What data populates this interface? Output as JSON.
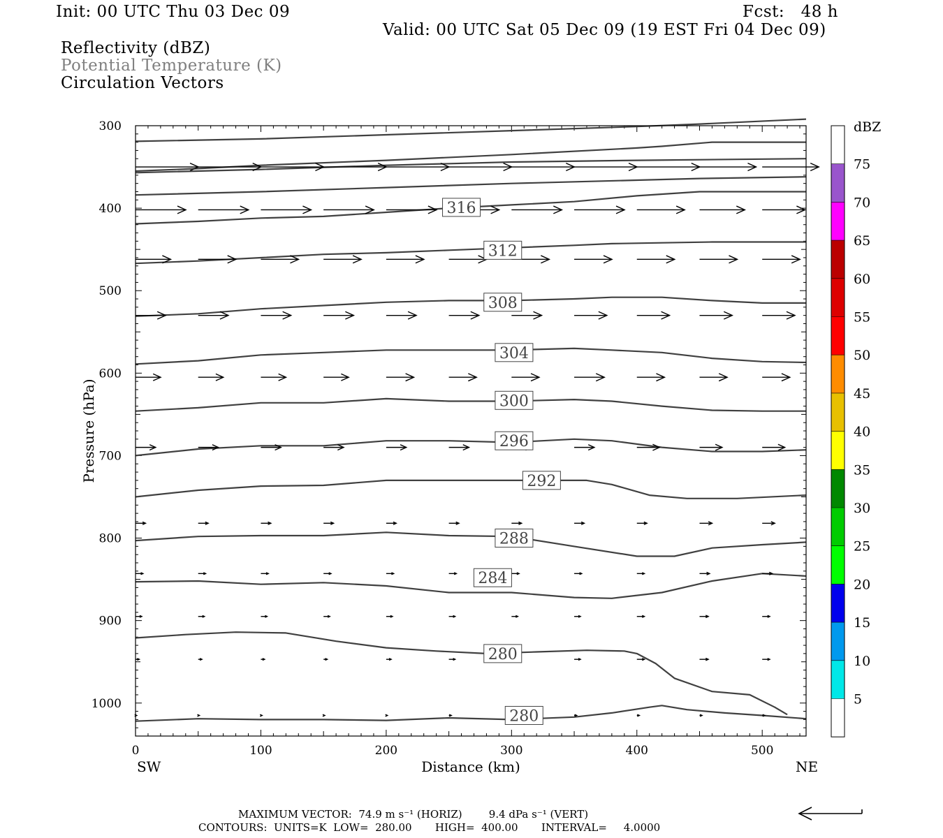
{
  "header": {
    "init": "Init: 00 UTC Thu 03 Dec 09",
    "fcst": "Fcst:   48 h",
    "valid": "Valid: 00 UTC Sat 05 Dec 09 (19 EST Fri 04 Dec 09)",
    "fields": [
      "Reflectivity (dBZ)",
      "Potential Temperature (K)",
      "Circulation Vectors"
    ]
  },
  "footer": {
    "max_vector": "MAXIMUM VECTOR:  74.9 m s⁻¹ (HORIZ)        9.4 dPa s⁻¹ (VERT)",
    "contours": "CONTOURS:  UNITS=K  LOW=  280.00       HIGH=  400.00       INTERVAL=     4.0000"
  },
  "colors": {
    "contour": "#404040",
    "vector": "#000000",
    "frame": "#000000"
  },
  "chart_data": {
    "type": "line",
    "xlabel": "Distance (km)",
    "ylabel": "Pressure (hPa)",
    "xlim": [
      0,
      535
    ],
    "ylim": [
      1040,
      300
    ],
    "x_ticks": [
      0,
      100,
      200,
      300,
      400,
      500
    ],
    "y_ticks": [
      300,
      400,
      500,
      600,
      700,
      800,
      900,
      1000
    ],
    "x_end_labels": {
      "left": "SW",
      "right": "NE"
    },
    "colorbar": {
      "title": "dBZ",
      "levels": [
        5,
        10,
        15,
        20,
        25,
        30,
        35,
        40,
        45,
        50,
        55,
        60,
        65,
        70,
        75
      ],
      "colors": [
        "#ffffff",
        "#00e8e8",
        "#0099ee",
        "#0000ee",
        "#00ff00",
        "#00cc00",
        "#008800",
        "#ffff00",
        "#e8c000",
        "#ff8c00",
        "#ff0000",
        "#dd0000",
        "#bb0000",
        "#ff00ff",
        "#9955cc",
        "#ffffff"
      ]
    },
    "series": [
      {
        "name": "280",
        "label_at": [
          310,
          1015
        ],
        "x": [
          0,
          50,
          100,
          150,
          200,
          250,
          300,
          350,
          380,
          410,
          420,
          440,
          470,
          500,
          535
        ],
        "y": [
          1022,
          1019,
          1020,
          1020,
          1021,
          1018,
          1020,
          1017,
          1012,
          1005,
          1003,
          1008,
          1012,
          1015,
          1019
        ]
      },
      {
        "name": "280",
        "label_at": [
          293,
          940
        ],
        "x": [
          0,
          40,
          80,
          120,
          160,
          200,
          240,
          280,
          320,
          360,
          390,
          400,
          415,
          430,
          460,
          490,
          510,
          520
        ],
        "y": [
          921,
          917,
          914,
          915,
          925,
          933,
          937,
          940,
          938,
          936,
          937,
          940,
          952,
          970,
          986,
          990,
          1005,
          1014
        ]
      },
      {
        "name": "284",
        "label_at": [
          285,
          848
        ],
        "x": [
          0,
          50,
          100,
          150,
          200,
          250,
          300,
          350,
          380,
          420,
          460,
          500,
          535
        ],
        "y": [
          853,
          852,
          856,
          854,
          858,
          866,
          866,
          872,
          873,
          866,
          852,
          843,
          846
        ]
      },
      {
        "name": "288",
        "label_at": [
          302,
          800
        ],
        "x": [
          0,
          50,
          100,
          150,
          200,
          250,
          300,
          350,
          400,
          430,
          460,
          500,
          535
        ],
        "y": [
          803,
          798,
          797,
          797,
          793,
          797,
          798,
          810,
          822,
          822,
          812,
          808,
          805
        ]
      },
      {
        "name": "292",
        "label_at": [
          324,
          730
        ],
        "x": [
          0,
          50,
          100,
          150,
          200,
          250,
          300,
          360,
          380,
          410,
          440,
          480,
          535
        ],
        "y": [
          750,
          742,
          737,
          736,
          730,
          730,
          730,
          730,
          735,
          748,
          752,
          752,
          748
        ]
      },
      {
        "name": "296",
        "label_at": [
          302,
          682
        ],
        "x": [
          0,
          50,
          100,
          150,
          200,
          250,
          300,
          350,
          380,
          420,
          460,
          500,
          535
        ],
        "y": [
          700,
          692,
          688,
          688,
          682,
          682,
          684,
          680,
          682,
          690,
          695,
          695,
          693
        ]
      },
      {
        "name": "300",
        "label_at": [
          302,
          633
        ],
        "x": [
          0,
          50,
          100,
          150,
          200,
          250,
          300,
          350,
          380,
          420,
          460,
          500,
          535
        ],
        "y": [
          646,
          642,
          636,
          636,
          631,
          634,
          634,
          632,
          634,
          640,
          645,
          646,
          646
        ]
      },
      {
        "name": "304",
        "label_at": [
          302,
          575
        ],
        "x": [
          0,
          50,
          100,
          150,
          200,
          250,
          300,
          350,
          380,
          420,
          460,
          500,
          535
        ],
        "y": [
          589,
          585,
          578,
          575,
          572,
          572,
          572,
          570,
          572,
          575,
          582,
          586,
          587
        ]
      },
      {
        "name": "308",
        "label_at": [
          293,
          514
        ],
        "x": [
          0,
          50,
          100,
          150,
          200,
          250,
          300,
          350,
          380,
          420,
          460,
          500,
          535
        ],
        "y": [
          531,
          528,
          522,
          518,
          514,
          512,
          512,
          510,
          508,
          508,
          512,
          515,
          515
        ]
      },
      {
        "name": "312",
        "label_at": [
          293,
          451
        ],
        "x": [
          0,
          50,
          100,
          150,
          200,
          250,
          300,
          350,
          380,
          420,
          460,
          500,
          535
        ],
        "y": [
          467,
          464,
          460,
          456,
          454,
          451,
          448,
          445,
          443,
          442,
          441,
          441,
          441
        ]
      },
      {
        "name": "316",
        "label_at": [
          260,
          399
        ],
        "x": [
          0,
          50,
          100,
          150,
          200,
          250,
          300,
          350,
          400,
          450,
          500,
          535
        ],
        "y": [
          419,
          416,
          412,
          410,
          405,
          400,
          396,
          392,
          385,
          380,
          380,
          380
        ]
      },
      {
        "name": "",
        "x": [
          0,
          100,
          200,
          300,
          400,
          450,
          535
        ],
        "y": [
          384,
          380,
          375,
          370,
          366,
          364,
          362
        ]
      },
      {
        "name": "",
        "x": [
          0,
          100,
          200,
          300,
          400,
          535
        ],
        "y": [
          357,
          353,
          348,
          344,
          342,
          340
        ]
      },
      {
        "name": "",
        "x": [
          0,
          50,
          100,
          200,
          300,
          400,
          420,
          460,
          535
        ],
        "y": [
          355,
          352,
          348,
          342,
          335,
          327,
          325,
          320,
          320
        ]
      },
      {
        "name": "",
        "x": [
          0,
          100,
          200,
          300,
          400,
          450,
          535
        ],
        "y": [
          319,
          316,
          311,
          306,
          301,
          298,
          292
        ]
      }
    ],
    "vectors": {
      "x": [
        0,
        50,
        100,
        150,
        200,
        250,
        300,
        350,
        400,
        450,
        500
      ],
      "rows": [
        {
          "p": 350,
          "u": [
            50,
            50,
            50,
            50,
            50,
            50,
            50,
            50,
            50,
            45,
            45
          ]
        },
        {
          "p": 402,
          "u": [
            40,
            40,
            40,
            40,
            40,
            40,
            40,
            40,
            38,
            36,
            34
          ]
        },
        {
          "p": 462,
          "u": [
            28,
            30,
            30,
            30,
            30,
            30,
            30,
            30,
            30,
            30,
            30
          ]
        },
        {
          "p": 530,
          "u": [
            24,
            24,
            24,
            24,
            24,
            24,
            24,
            26,
            26,
            26,
            26
          ]
        },
        {
          "p": 605,
          "u": [
            20,
            20,
            20,
            20,
            22,
            22,
            22,
            24,
            22,
            22,
            22
          ]
        },
        {
          "p": 690,
          "u": [
            16,
            16,
            16,
            16,
            16,
            16,
            16,
            16,
            18,
            18,
            18
          ]
        },
        {
          "p": 782,
          "u": [
            8,
            8,
            8,
            8,
            8,
            8,
            8,
            8,
            8,
            10,
            10
          ]
        },
        {
          "p": 843,
          "u": [
            6,
            6,
            6,
            6,
            6,
            6,
            6,
            6,
            6,
            8,
            8
          ]
        },
        {
          "p": 895,
          "u": [
            5,
            5,
            5,
            5,
            5,
            5,
            5,
            5,
            6,
            7,
            6
          ]
        },
        {
          "p": 947,
          "u": [
            3,
            3,
            3,
            3,
            4,
            5,
            5,
            5,
            6,
            7,
            6
          ]
        },
        {
          "p": 1015,
          "u": [
            1,
            1,
            1,
            1,
            1,
            2,
            2,
            2,
            2,
            2,
            2
          ]
        }
      ]
    },
    "reference_vector": "←"
  }
}
